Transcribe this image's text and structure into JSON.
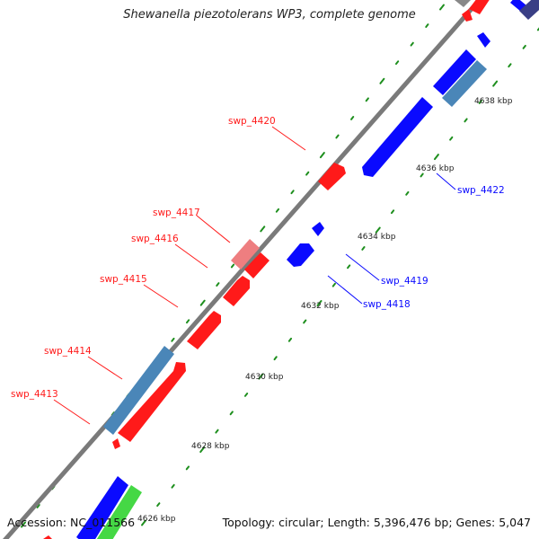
{
  "title": "Shewanella piezotolerans WP3, complete genome",
  "footer": {
    "accession": "Accession: NC_011566",
    "summary": "Topology: circular; Length: 5,396,476 bp; Genes: 5,047"
  },
  "colors": {
    "backbone": "#7a7a7a",
    "forward_gene": "#ff1a1a",
    "reverse_gene": "#0a0aff",
    "rrna_like": "#4a86b8",
    "light_red": "#ee7e80",
    "green": "#45d845",
    "grey_gene": "#888888",
    "slate_gene": "#3a3f85",
    "dots": "#1e8f1e"
  },
  "ticks": [
    {
      "label": "4626 kbp"
    },
    {
      "label": "4628 kbp"
    },
    {
      "label": "4630 kbp"
    },
    {
      "label": "4632 kbp"
    },
    {
      "label": "4634 kbp"
    },
    {
      "label": "4636 kbp"
    },
    {
      "label": "4638 kbp"
    }
  ],
  "gene_labels": [
    {
      "text": "swp_4413",
      "color": "#ff1a1a",
      "icon": "forward-strand-gene"
    },
    {
      "text": "swp_4414",
      "color": "#ff1a1a",
      "icon": "forward-strand-gene"
    },
    {
      "text": "swp_4415",
      "color": "#ff1a1a",
      "icon": "forward-strand-gene"
    },
    {
      "text": "swp_4416",
      "color": "#ff1a1a",
      "icon": "forward-strand-gene"
    },
    {
      "text": "swp_4417",
      "color": "#ff1a1a",
      "icon": "forward-strand-gene"
    },
    {
      "text": "swp_4420",
      "color": "#ff1a1a",
      "icon": "forward-strand-gene"
    },
    {
      "text": "swp_4418",
      "color": "#0a0aff",
      "icon": "reverse-strand-gene"
    },
    {
      "text": "swp_4419",
      "color": "#0a0aff",
      "icon": "reverse-strand-gene"
    },
    {
      "text": "swp_4422",
      "color": "#0a0aff",
      "icon": "reverse-strand-gene"
    }
  ]
}
